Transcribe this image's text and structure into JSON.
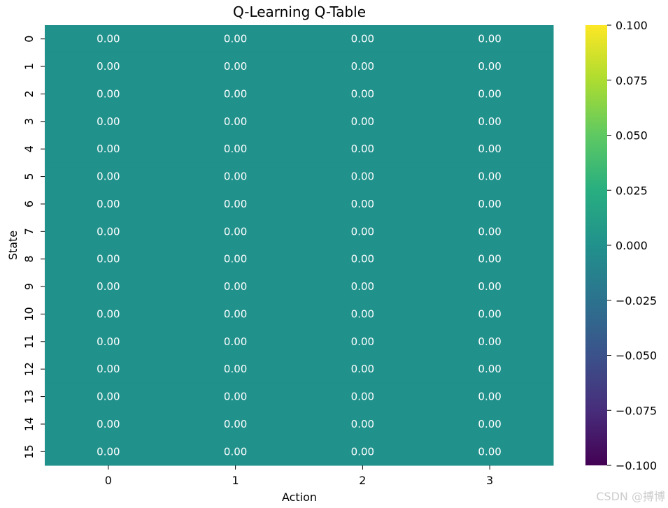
{
  "watermark": "CSDN @搏博",
  "chart_data": {
    "type": "heatmap",
    "title": "Q-Learning Q-Table",
    "xlabel": "Action",
    "ylabel": "State",
    "x_categories": [
      "0",
      "1",
      "2",
      "3"
    ],
    "y_categories": [
      "0",
      "1",
      "2",
      "3",
      "4",
      "5",
      "6",
      "7",
      "8",
      "9",
      "10",
      "11",
      "12",
      "13",
      "14",
      "15"
    ],
    "values": [
      [
        0,
        0,
        0,
        0
      ],
      [
        0,
        0,
        0,
        0
      ],
      [
        0,
        0,
        0,
        0
      ],
      [
        0,
        0,
        0,
        0
      ],
      [
        0,
        0,
        0,
        0
      ],
      [
        0,
        0,
        0,
        0
      ],
      [
        0,
        0,
        0,
        0
      ],
      [
        0,
        0,
        0,
        0
      ],
      [
        0,
        0,
        0,
        0
      ],
      [
        0,
        0,
        0,
        0
      ],
      [
        0,
        0,
        0,
        0
      ],
      [
        0,
        0,
        0,
        0
      ],
      [
        0,
        0,
        0,
        0
      ],
      [
        0,
        0,
        0,
        0
      ],
      [
        0,
        0,
        0,
        0
      ],
      [
        0,
        0,
        0,
        0
      ]
    ],
    "value_format": "0.00",
    "colormap": "viridis",
    "vmin": -0.1,
    "vmax": 0.1,
    "colorbar_ticks": [
      "0.100",
      "0.075",
      "0.050",
      "0.025",
      "0.000",
      "−0.025",
      "−0.050",
      "−0.075",
      "−0.100"
    ],
    "annotation_color": "#ffffff"
  }
}
